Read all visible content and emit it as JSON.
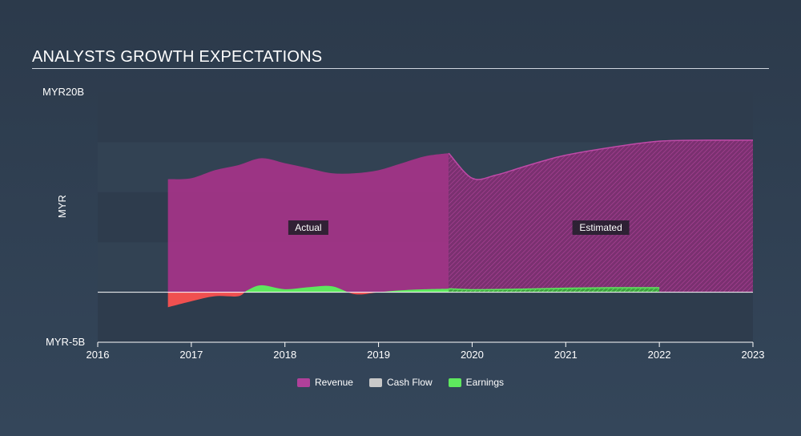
{
  "title": "ANALYSTS GROWTH EXPECTATIONS",
  "yaxis": {
    "title": "MYR",
    "top_label": "MYR20B",
    "bottom_label": "MYR-5B"
  },
  "labels": {
    "actual": "Actual",
    "estimated": "Estimated"
  },
  "colors": {
    "revenue": "#a7338a",
    "earnings": "#5ee85e",
    "earnings_negative": "#f05050",
    "cashflow": "#c8c8c8",
    "band_dark": "#2e3c4d",
    "band_light": "#324253"
  },
  "legend": [
    {
      "name": "Revenue",
      "color": "#b0409a"
    },
    {
      "name": "Cash Flow",
      "color": "#c8c8c8"
    },
    {
      "name": "Earnings",
      "color": "#5ee85e"
    }
  ],
  "chart_data": {
    "type": "area",
    "xlim": [
      2016,
      2023
    ],
    "ylim": [
      -5,
      20
    ],
    "ylabel": "MYR",
    "x_ticks": [
      "2016",
      "2017",
      "2018",
      "2019",
      "2020",
      "2021",
      "2022",
      "2023"
    ],
    "actual_until": 2019.75,
    "series": [
      {
        "name": "Revenue",
        "x": [
          2016.75,
          2017.0,
          2017.25,
          2017.5,
          2017.75,
          2018.0,
          2018.25,
          2018.5,
          2018.75,
          2019.0,
          2019.25,
          2019.5,
          2019.75,
          2020.0,
          2020.25,
          2020.5,
          2020.75,
          2021.0,
          2021.5,
          2022.0,
          2022.5,
          2023.0
        ],
        "values": [
          11.3,
          11.4,
          12.2,
          12.7,
          13.4,
          12.9,
          12.4,
          11.9,
          11.9,
          12.2,
          12.9,
          13.6,
          13.9,
          11.4,
          11.7,
          12.4,
          13.1,
          13.7,
          14.5,
          15.1,
          15.2,
          15.2
        ]
      },
      {
        "name": "Earnings",
        "x": [
          2016.75,
          2017.0,
          2017.25,
          2017.5,
          2017.6,
          2017.75,
          2018.0,
          2018.25,
          2018.5,
          2018.75,
          2019.0,
          2019.25,
          2019.5,
          2019.75,
          2020.0,
          2020.5,
          2021.0,
          2021.5,
          2022.0
        ],
        "values": [
          -1.5,
          -0.9,
          -0.4,
          -0.4,
          0.2,
          0.7,
          0.3,
          0.5,
          0.6,
          -0.2,
          0.0,
          0.2,
          0.3,
          0.35,
          0.25,
          0.3,
          0.4,
          0.45,
          0.45
        ]
      },
      {
        "name": "Cash Flow",
        "x": [],
        "values": []
      }
    ]
  }
}
